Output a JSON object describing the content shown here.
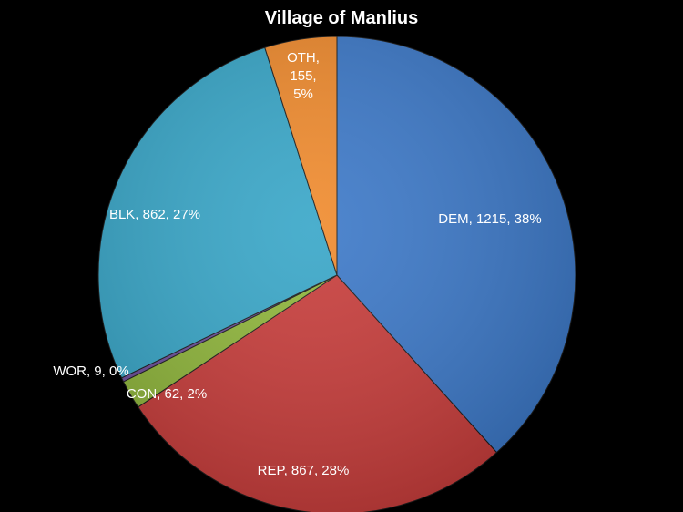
{
  "chart_data": {
    "type": "pie",
    "title": "Village of Manlius",
    "slices": [
      {
        "name": "DEM",
        "value": 1215,
        "percent": "38%",
        "label": "DEM, 1215, 38%",
        "color": "#3b78c8"
      },
      {
        "name": "REP",
        "value": 867,
        "percent": "28%",
        "label": "REP, 867, 28%",
        "color": "#c83c3a"
      },
      {
        "name": "CON",
        "value": 62,
        "percent": "2%",
        "label": "CON, 62, 2%",
        "color": "#8fb63a"
      },
      {
        "name": "WOR",
        "value": 9,
        "percent": "0%",
        "label": "WOR, 9, 0%",
        "color": "#6b4c9a"
      },
      {
        "name": "BLK",
        "value": 862,
        "percent": "27%",
        "label": "BLK, 862, 27%",
        "color": "#37a6c8"
      },
      {
        "name": "OTH",
        "value": 155,
        "percent": "5%",
        "label_lines": [
          "OTH,",
          "155,",
          "5%"
        ],
        "color": "#f08a2c"
      }
    ],
    "start_angle": "12 o'clock",
    "direction": "clockwise",
    "legend": "none"
  }
}
